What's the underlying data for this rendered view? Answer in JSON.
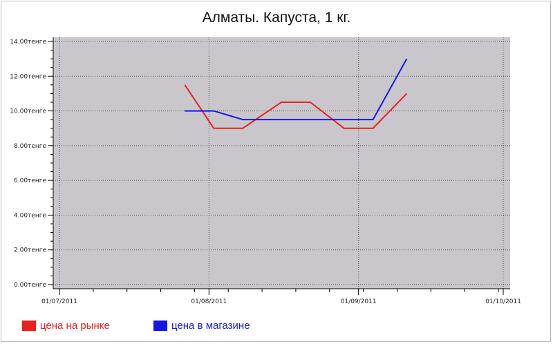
{
  "chart_data": {
    "type": "line",
    "title": "Алматы. Капуста, 1 кг.",
    "xlabel": "",
    "ylabel": "",
    "x_tick_labels": [
      "01/07/2011",
      "01/08/2011",
      "01/09/2011",
      "01/10/2011"
    ],
    "y_tick_labels": [
      "0.00тенге",
      "2.00тенге",
      "4.00тенге",
      "6.00тенге",
      "8.00тенге",
      "10.00тенге",
      "12.00тенге",
      "14.00тенге"
    ],
    "y_ticks": [
      0,
      2,
      4,
      6,
      8,
      10,
      12,
      14
    ],
    "ylim": [
      0,
      14
    ],
    "xlim": [
      "2011-07-01",
      "2011-10-01"
    ],
    "grid": true,
    "legend_position": "bottom-left",
    "series": [
      {
        "name": "цена на рынке",
        "color": "#e8211e",
        "points": [
          {
            "x": "2011-07-27",
            "y": 11.5
          },
          {
            "x": "2011-08-02",
            "y": 9.0
          },
          {
            "x": "2011-08-08",
            "y": 9.0
          },
          {
            "x": "2011-08-16",
            "y": 10.5
          },
          {
            "x": "2011-08-22",
            "y": 10.5
          },
          {
            "x": "2011-08-29",
            "y": 9.0
          },
          {
            "x": "2011-09-04",
            "y": 9.0
          },
          {
            "x": "2011-09-11",
            "y": 11.0
          }
        ]
      },
      {
        "name": "цена в магазине",
        "color": "#1616e6",
        "points": [
          {
            "x": "2011-07-27",
            "y": 10.0
          },
          {
            "x": "2011-08-02",
            "y": 10.0
          },
          {
            "x": "2011-08-08",
            "y": 9.5
          },
          {
            "x": "2011-08-16",
            "y": 9.5
          },
          {
            "x": "2011-08-22",
            "y": 9.5
          },
          {
            "x": "2011-08-29",
            "y": 9.5
          },
          {
            "x": "2011-09-04",
            "y": 9.5
          },
          {
            "x": "2011-09-11",
            "y": 13.0
          }
        ]
      }
    ]
  },
  "colors": {
    "plot_background": "#c9c6cc",
    "grid": "#4a4a4a",
    "axis": "#000000"
  }
}
